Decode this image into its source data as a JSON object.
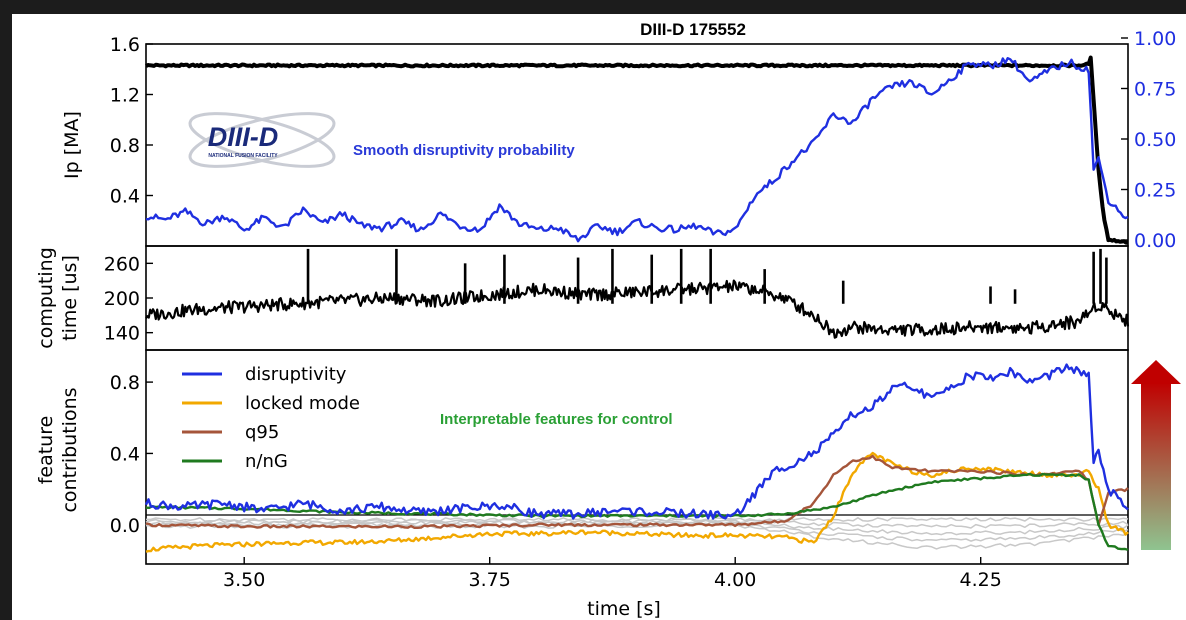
{
  "header": {
    "title": "DIII-D 175552",
    "logo_text": "DIII-D",
    "logo_subtext": "NATIONAL FUSION FACILITY",
    "annotation_top": "Smooth disruptivity probability",
    "annotation_bottom": "Interpretable features for control"
  },
  "colors": {
    "disruptivity": "#1f2fe0",
    "locked_mode": "#f2a800",
    "q95": "#a5553a",
    "nnG": "#1f7a1f",
    "other_features": "#c8c8c8",
    "current": "#000000",
    "computing": "#000000",
    "arrow_top": "#c00000",
    "arrow_bottom": "#8fc490"
  },
  "chart_data": [
    {
      "type": "line",
      "panel": "top",
      "title": "DIII-D 175552",
      "ylabel": "Ip [MA]",
      "ylim": [
        0,
        1.6
      ],
      "yticks": [
        "1.6",
        "1.2",
        "0.8",
        "0.4"
      ],
      "y2lim": [
        0,
        1.0
      ],
      "y2ticks": [
        "1.00",
        "0.75",
        "0.50",
        "0.25",
        "0.00"
      ],
      "xlim": [
        3.4,
        4.4
      ],
      "series": [
        {
          "name": "Ip",
          "axis": "left",
          "x": [
            3.4,
            3.6,
            3.8,
            4.0,
            4.2,
            4.33,
            4.35,
            4.36,
            4.362,
            4.365,
            4.37,
            4.375,
            4.38,
            4.4
          ],
          "y": [
            1.43,
            1.43,
            1.43,
            1.43,
            1.43,
            1.43,
            1.43,
            1.44,
            1.5,
            1.15,
            0.6,
            0.25,
            0.05,
            0.03
          ]
        },
        {
          "name": "disruptivity",
          "axis": "right",
          "x": [
            3.4,
            3.42,
            3.44,
            3.46,
            3.48,
            3.5,
            3.52,
            3.54,
            3.56,
            3.58,
            3.6,
            3.62,
            3.64,
            3.66,
            3.68,
            3.7,
            3.72,
            3.74,
            3.76,
            3.78,
            3.8,
            3.82,
            3.84,
            3.86,
            3.88,
            3.9,
            3.92,
            3.94,
            3.96,
            3.98,
            4.0,
            4.02,
            4.04,
            4.06,
            4.08,
            4.1,
            4.12,
            4.14,
            4.16,
            4.18,
            4.2,
            4.22,
            4.24,
            4.26,
            4.28,
            4.3,
            4.32,
            4.34,
            4.35,
            4.36,
            4.365,
            4.37,
            4.38,
            4.4
          ],
          "y": [
            0.12,
            0.1,
            0.14,
            0.08,
            0.12,
            0.05,
            0.11,
            0.06,
            0.15,
            0.08,
            0.13,
            0.07,
            0.06,
            0.09,
            0.05,
            0.13,
            0.07,
            0.05,
            0.17,
            0.08,
            0.05,
            0.06,
            0.0,
            0.07,
            0.04,
            0.09,
            0.06,
            0.05,
            0.07,
            0.03,
            0.05,
            0.22,
            0.3,
            0.4,
            0.48,
            0.62,
            0.58,
            0.7,
            0.76,
            0.78,
            0.72,
            0.8,
            0.88,
            0.86,
            0.9,
            0.78,
            0.84,
            0.88,
            0.86,
            0.84,
            0.35,
            0.4,
            0.2,
            0.1
          ]
        }
      ],
      "annotation": "Smooth disruptivity probability"
    },
    {
      "type": "line",
      "panel": "middle",
      "ylabel": "computing\ntime [us]",
      "yticks": [
        "260",
        "200",
        "140"
      ],
      "ylim": [
        110,
        290
      ],
      "xlim": [
        3.4,
        4.4
      ],
      "series": [
        {
          "name": "computing time",
          "x": [
            3.4,
            3.45,
            3.5,
            3.55,
            3.6,
            3.65,
            3.7,
            3.75,
            3.8,
            3.85,
            3.9,
            3.95,
            4.0,
            4.02,
            4.05,
            4.08,
            4.1,
            4.12,
            4.15,
            4.2,
            4.25,
            4.3,
            4.35,
            4.37,
            4.4
          ],
          "y": [
            170,
            180,
            185,
            190,
            195,
            200,
            195,
            205,
            215,
            205,
            210,
            215,
            220,
            215,
            200,
            170,
            140,
            150,
            145,
            145,
            150,
            148,
            160,
            190,
            160
          ]
        },
        {
          "name": "computing time spikes",
          "x": [
            3.565,
            3.655,
            3.725,
            3.765,
            3.84,
            3.875,
            3.915,
            3.945,
            3.975,
            4.03,
            4.11,
            4.26,
            4.285,
            4.365,
            4.372,
            4.378
          ],
          "y": [
            285,
            285,
            260,
            275,
            270,
            285,
            275,
            285,
            285,
            250,
            230,
            220,
            215,
            280,
            285,
            270
          ]
        }
      ]
    },
    {
      "type": "line",
      "panel": "bottom",
      "ylabel": "feature\ncontributions",
      "ylim": [
        -0.22,
        0.98
      ],
      "yticks": [
        "0.8",
        "0.4",
        "0.0"
      ],
      "xlim": [
        3.4,
        4.4
      ],
      "xticks": [
        "3.50",
        "3.75",
        "4.00",
        "4.25"
      ],
      "xlabel": "time [s]",
      "series": [
        {
          "name": "disruptivity",
          "x": [
            3.4,
            3.44,
            3.48,
            3.52,
            3.56,
            3.6,
            3.64,
            3.68,
            3.72,
            3.76,
            3.8,
            3.84,
            3.88,
            3.92,
            3.96,
            4.0,
            4.04,
            4.08,
            4.1,
            4.12,
            4.14,
            4.16,
            4.18,
            4.2,
            4.22,
            4.24,
            4.26,
            4.28,
            4.3,
            4.32,
            4.34,
            4.35,
            4.36,
            4.365,
            4.37,
            4.38,
            4.4
          ],
          "y": [
            0.12,
            0.1,
            0.12,
            0.08,
            0.12,
            0.08,
            0.1,
            0.07,
            0.09,
            0.11,
            0.06,
            0.06,
            0.08,
            0.07,
            0.06,
            0.05,
            0.3,
            0.4,
            0.5,
            0.62,
            0.66,
            0.76,
            0.78,
            0.7,
            0.78,
            0.84,
            0.82,
            0.86,
            0.8,
            0.84,
            0.88,
            0.86,
            0.84,
            0.35,
            0.4,
            0.2,
            0.08
          ]
        },
        {
          "name": "locked mode",
          "x": [
            3.4,
            3.45,
            3.5,
            3.55,
            3.6,
            3.65,
            3.7,
            3.75,
            3.8,
            3.85,
            3.9,
            3.95,
            4.0,
            4.05,
            4.08,
            4.1,
            4.12,
            4.14,
            4.16,
            4.18,
            4.2,
            4.24,
            4.28,
            4.32,
            4.35,
            4.36,
            4.37,
            4.38,
            4.4
          ],
          "y": [
            -0.14,
            -0.12,
            -0.11,
            -0.1,
            -0.1,
            -0.09,
            -0.07,
            -0.05,
            -0.05,
            -0.04,
            -0.05,
            -0.06,
            -0.06,
            -0.07,
            -0.1,
            0.05,
            0.3,
            0.4,
            0.34,
            0.3,
            0.28,
            0.32,
            0.3,
            0.28,
            0.28,
            0.3,
            0.2,
            0.0,
            -0.05
          ]
        },
        {
          "name": "q95",
          "x": [
            3.4,
            3.5,
            3.6,
            3.7,
            3.8,
            3.9,
            4.0,
            4.05,
            4.08,
            4.1,
            4.12,
            4.14,
            4.16,
            4.2,
            4.25,
            4.3,
            4.35,
            4.36,
            4.37,
            4.38,
            4.4
          ],
          "y": [
            0.0,
            -0.01,
            -0.01,
            -0.01,
            0.0,
            0.0,
            0.0,
            0.02,
            0.12,
            0.28,
            0.36,
            0.38,
            0.32,
            0.3,
            0.3,
            0.28,
            0.3,
            0.25,
            0.0,
            0.18,
            0.2
          ]
        },
        {
          "name": "n/nG",
          "x": [
            3.4,
            3.5,
            3.6,
            3.7,
            3.8,
            3.9,
            4.0,
            4.05,
            4.1,
            4.15,
            4.2,
            4.25,
            4.3,
            4.35,
            4.36,
            4.37,
            4.38,
            4.4
          ],
          "y": [
            0.1,
            0.09,
            0.07,
            0.06,
            0.05,
            0.05,
            0.05,
            0.06,
            0.1,
            0.18,
            0.24,
            0.26,
            0.28,
            0.28,
            0.25,
            0.0,
            -0.12,
            -0.14
          ]
        },
        {
          "name": "other features",
          "x": [
            3.4,
            3.6,
            3.8,
            4.0,
            4.1,
            4.2,
            4.3,
            4.4
          ],
          "y": [
            0.02,
            0.02,
            0.02,
            0.03,
            -0.05,
            -0.1,
            -0.08,
            -0.02
          ]
        }
      ],
      "legend": {
        "position": "upper-left",
        "items": [
          "disruptivity",
          "locked mode",
          "q95",
          "n/nG"
        ]
      },
      "annotation": "Interpretable features for control"
    }
  ]
}
